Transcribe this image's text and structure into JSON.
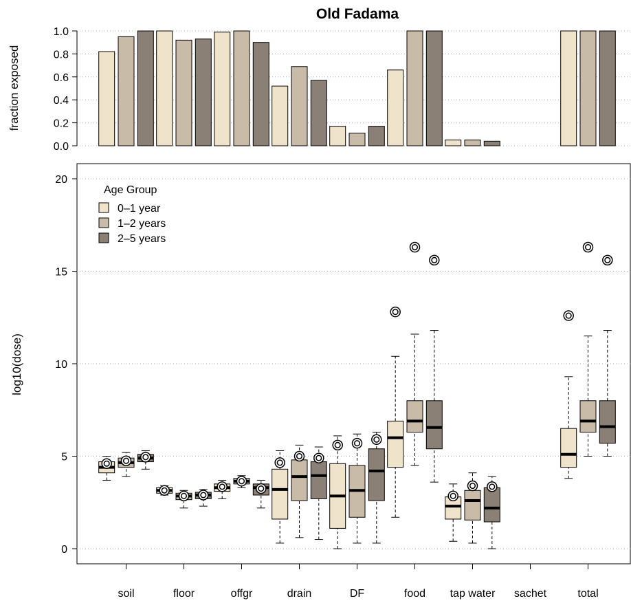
{
  "chart_data": [
    {
      "type": "bar",
      "title": "Old Fadama",
      "ylabel": "fraction exposed",
      "ylim": [
        0,
        1
      ],
      "yticks": [
        "0.0",
        "0.2",
        "0.4",
        "0.6",
        "0.8",
        "1.0"
      ],
      "grid": "horizontal dotted",
      "categories": [
        "soil",
        "floor",
        "offgr",
        "drain",
        "DF",
        "food",
        "tap water",
        "sachet",
        "total"
      ],
      "series": [
        {
          "name": "0–1 year",
          "color": "#efe3cc",
          "values": [
            0.82,
            1.0,
            0.99,
            0.52,
            0.17,
            0.66,
            0.05,
            0.0,
            1.0
          ]
        },
        {
          "name": "1–2 years",
          "color": "#c8bba8",
          "values": [
            0.95,
            0.92,
            1.0,
            0.69,
            0.11,
            1.0,
            0.05,
            0.0,
            1.0
          ]
        },
        {
          "name": "2–5 years",
          "color": "#8a8075",
          "values": [
            1.0,
            0.93,
            0.9,
            0.57,
            0.17,
            1.0,
            0.04,
            0.0,
            1.0
          ]
        }
      ]
    },
    {
      "type": "box",
      "ylabel": "log10(dose)",
      "ylim": [
        0,
        20
      ],
      "yticks": [
        "0",
        "5",
        "10",
        "15",
        "20"
      ],
      "grid": "horizontal dotted",
      "categories": [
        "soil",
        "floor",
        "offgr",
        "drain",
        "DF",
        "food",
        "tap water",
        "sachet",
        "total"
      ],
      "legend": {
        "title": "Age Group",
        "position": "top-left",
        "entries": [
          "0–1 year",
          "1–2 years",
          "2–5 years"
        ]
      },
      "series": [
        {
          "name": "0–1 year",
          "color": "#efe3cc",
          "boxes": [
            {
              "low": 3.7,
              "q1": 4.1,
              "median": 4.4,
              "q3": 4.7,
              "high": 5.0,
              "mean": 4.6
            },
            {
              "low": 2.9,
              "q1": 3.0,
              "median": 3.15,
              "q3": 3.3,
              "high": 3.4,
              "mean": 3.15
            },
            {
              "low": 2.7,
              "q1": 3.1,
              "median": 3.3,
              "q3": 3.5,
              "high": 3.7,
              "mean": 3.35
            },
            {
              "low": 0.3,
              "q1": 1.6,
              "median": 3.2,
              "q3": 4.3,
              "high": 5.3,
              "mean": 4.65
            },
            {
              "low": 0.0,
              "q1": 1.1,
              "median": 2.85,
              "q3": 4.6,
              "high": 6.1,
              "mean": 5.6
            },
            {
              "low": 1.7,
              "q1": 4.4,
              "median": 6.0,
              "q3": 6.9,
              "high": 10.4,
              "mean": 12.8
            },
            {
              "low": 0.4,
              "q1": 1.6,
              "median": 2.3,
              "q3": 2.8,
              "high": 3.5,
              "mean": 2.85
            },
            null,
            {
              "low": 3.8,
              "q1": 4.4,
              "median": 5.1,
              "q3": 6.5,
              "high": 9.3,
              "mean": 12.6
            }
          ]
        },
        {
          "name": "1–2 years",
          "color": "#c8bba8",
          "boxes": [
            {
              "low": 3.9,
              "q1": 4.4,
              "median": 4.65,
              "q3": 4.9,
              "high": 5.2,
              "mean": 4.75
            },
            {
              "low": 2.2,
              "q1": 2.65,
              "median": 2.85,
              "q3": 3.0,
              "high": 3.15,
              "mean": 2.85
            },
            {
              "low": 3.3,
              "q1": 3.5,
              "median": 3.65,
              "q3": 3.8,
              "high": 3.95,
              "mean": 3.65
            },
            {
              "low": 0.6,
              "q1": 2.6,
              "median": 3.9,
              "q3": 4.8,
              "high": 5.6,
              "mean": 5.0
            },
            {
              "low": 0.3,
              "q1": 1.7,
              "median": 3.15,
              "q3": 4.5,
              "high": 6.2,
              "mean": 5.7
            },
            {
              "low": 4.5,
              "q1": 6.3,
              "median": 6.9,
              "q3": 8.0,
              "high": 11.6,
              "mean": 16.3
            },
            {
              "low": 0.3,
              "q1": 1.55,
              "median": 2.6,
              "q3": 3.15,
              "high": 4.1,
              "mean": 3.4
            },
            null,
            {
              "low": 5.0,
              "q1": 6.3,
              "median": 6.9,
              "q3": 8.0,
              "high": 11.5,
              "mean": 16.3
            }
          ]
        },
        {
          "name": "2–5 years",
          "color": "#8a8075",
          "boxes": [
            {
              "low": 4.3,
              "q1": 4.7,
              "median": 4.9,
              "q3": 5.1,
              "high": 5.3,
              "mean": 4.95
            },
            {
              "low": 2.3,
              "q1": 2.7,
              "median": 2.9,
              "q3": 3.05,
              "high": 3.2,
              "mean": 2.9
            },
            {
              "low": 2.2,
              "q1": 2.9,
              "median": 3.3,
              "q3": 3.5,
              "high": 3.7,
              "mean": 3.25
            },
            {
              "low": 0.5,
              "q1": 2.7,
              "median": 3.95,
              "q3": 4.7,
              "high": 5.5,
              "mean": 4.9
            },
            {
              "low": 0.3,
              "q1": 2.6,
              "median": 4.2,
              "q3": 5.4,
              "high": 6.3,
              "mean": 5.9
            },
            {
              "low": 3.6,
              "q1": 5.4,
              "median": 6.55,
              "q3": 8.0,
              "high": 11.8,
              "mean": 15.6
            },
            {
              "low": 0.0,
              "q1": 1.45,
              "median": 2.2,
              "q3": 3.3,
              "high": 3.9,
              "mean": 3.35
            },
            null,
            {
              "low": 5.0,
              "q1": 5.7,
              "median": 6.6,
              "q3": 8.0,
              "high": 11.8,
              "mean": 15.6
            }
          ]
        }
      ]
    }
  ]
}
